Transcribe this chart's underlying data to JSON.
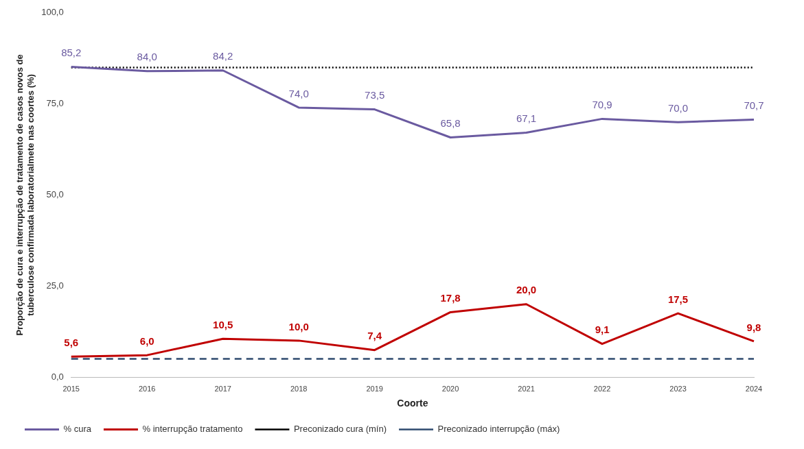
{
  "chart_data": {
    "type": "line",
    "xlabel": "Coorte",
    "ylabel": "Proporção de cura e interrupção de tratamento de casos novos de\ntuberculose confirmada laboratorialmete nas coortes (%)",
    "categories": [
      "2015",
      "2016",
      "2017",
      "2018",
      "2019",
      "2020",
      "2021",
      "2022",
      "2023",
      "2024"
    ],
    "series": [
      {
        "name": "% cura",
        "color": "#6a5aa0",
        "values": [
          85.2,
          84.0,
          84.2,
          74.0,
          73.5,
          65.8,
          67.1,
          70.9,
          70.0,
          70.7
        ],
        "value_labels": [
          "85,2",
          "84,0",
          "84,2",
          "74,0",
          "73,5",
          "65,8",
          "67,1",
          "70,9",
          "70,0",
          "70,7"
        ]
      },
      {
        "name": "% interrupção tratamento",
        "color": "#c00000",
        "values": [
          5.6,
          6.0,
          10.5,
          10.0,
          7.4,
          17.8,
          20.0,
          9.1,
          17.5,
          9.8
        ],
        "value_labels": [
          "5,6",
          "6,0",
          "10,5",
          "10,0",
          "7,4",
          "17,8",
          "20,0",
          "9,1",
          "17,5",
          "9,8"
        ]
      }
    ],
    "ref_lines": [
      {
        "axis": "y",
        "value": 85,
        "label": "Preconizado cura (mín)",
        "color": "#000000",
        "line_style": "dotted"
      },
      {
        "axis": "y",
        "value": 5,
        "label": "Preconizado interrupção (máx)",
        "color": "#2e4a6e",
        "line_style": "dashed"
      }
    ],
    "ylim": [
      0,
      100
    ],
    "yticks": [
      {
        "value": 0,
        "label": "0,0"
      },
      {
        "value": 25,
        "label": "25,0"
      },
      {
        "value": 50,
        "label": "50,0"
      },
      {
        "value": 75,
        "label": "75,0"
      },
      {
        "value": 100,
        "label": "100,0"
      }
    ],
    "grid": false,
    "legend": "bottom",
    "marker": "none",
    "line_style": "solid"
  }
}
